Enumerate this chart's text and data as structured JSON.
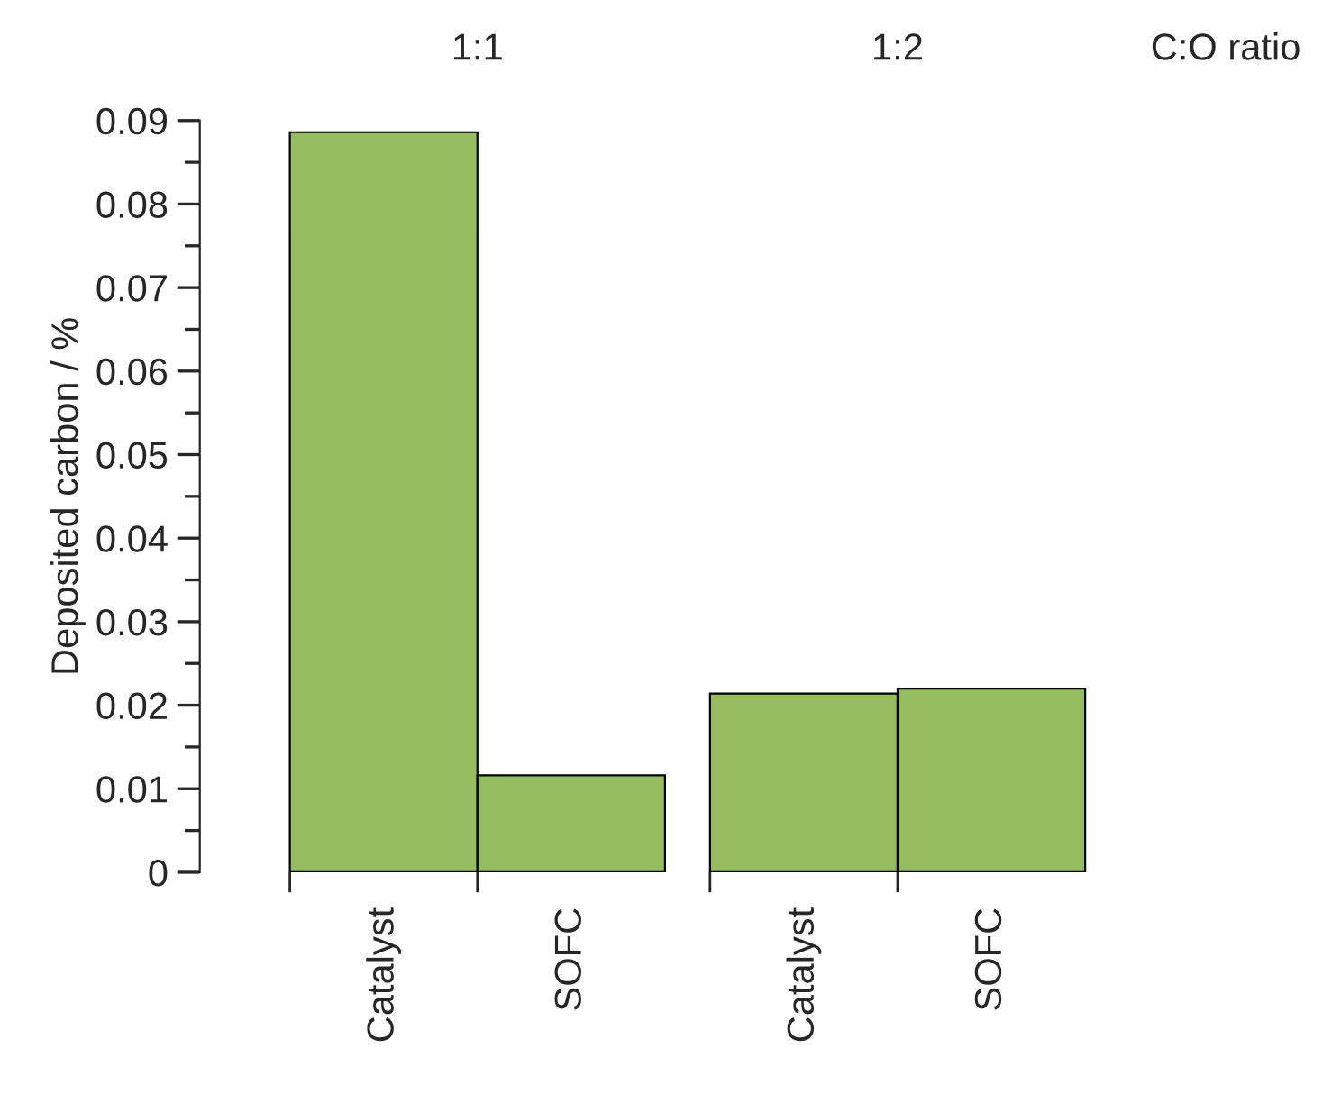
{
  "chart_data": {
    "type": "bar",
    "ylabel": "Deposited carbon / %",
    "categories": [
      "Catalyst",
      "SOFC",
      "Catalyst",
      "SOFC"
    ],
    "values": [
      0.0886,
      0.0116,
      0.0214,
      0.022
    ],
    "color": "#95bd5f",
    "ylim": [
      0,
      0.09
    ],
    "yticks": [
      0,
      0.01,
      0.02,
      0.03,
      0.04,
      0.05,
      0.06,
      0.07,
      0.08,
      0.09
    ],
    "annotations": [
      "1:1",
      "1:2",
      "C:O ratio"
    ],
    "grid": false,
    "legend": false
  }
}
